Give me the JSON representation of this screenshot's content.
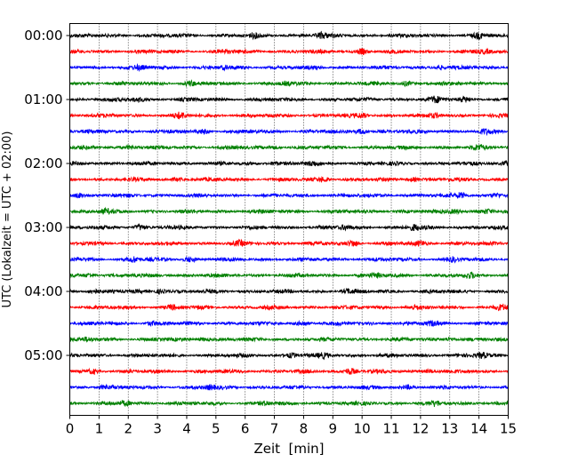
{
  "chart_data": {
    "type": "line",
    "title": "",
    "xlabel": "Zeit  [min]",
    "ylabel": "UTC (Lokalzeit = UTC + 02:00)",
    "xlim": [
      0,
      15
    ],
    "x_ticks": [
      0,
      1,
      2,
      3,
      4,
      5,
      6,
      7,
      8,
      9,
      10,
      11,
      12,
      13,
      14,
      15
    ],
    "x_tick_labels": [
      "0",
      "1",
      "2",
      "3",
      "4",
      "5",
      "6",
      "7",
      "8",
      "9",
      "10",
      "11",
      "12",
      "13",
      "14",
      "15"
    ],
    "vertical_gridlines": "dotted at each minute",
    "y_tick_labels": [
      "00:00",
      "01:00",
      "02:00",
      "03:00",
      "04:00",
      "05:00"
    ],
    "trace_interval_minutes": 15,
    "trace_count": 24,
    "trace_color_cycle": [
      "#000000",
      "#ff0000",
      "#0000ff",
      "#008000"
    ],
    "series": [
      {
        "start": "00:00",
        "color": "#000000",
        "bursts": [
          [
            8.6,
            2.6
          ],
          [
            14.0,
            2.2
          ],
          [
            6.3,
            1.6
          ]
        ]
      },
      {
        "start": "00:15",
        "color": "#ff0000",
        "bursts": [
          [
            10.0,
            2.4
          ],
          [
            14.2,
            1.8
          ],
          [
            5.3,
            1.5
          ]
        ]
      },
      {
        "start": "00:30",
        "color": "#0000ff",
        "bursts": [
          [
            2.4,
            1.6
          ],
          [
            12.6,
            1.8
          ],
          [
            5.3,
            1.4
          ]
        ]
      },
      {
        "start": "00:45",
        "color": "#008000",
        "bursts": [
          [
            4.1,
            2.0
          ],
          [
            11.5,
            1.7
          ],
          [
            7.4,
            1.3
          ]
        ]
      },
      {
        "start": "01:00",
        "color": "#000000",
        "bursts": [
          [
            12.5,
            2.4
          ],
          [
            13.5,
            2.2
          ],
          [
            2.3,
            1.9
          ]
        ]
      },
      {
        "start": "01:15",
        "color": "#ff0000",
        "bursts": [
          [
            3.8,
            2.6
          ],
          [
            10.0,
            1.8
          ],
          [
            12.5,
            1.4
          ]
        ]
      },
      {
        "start": "01:30",
        "color": "#0000ff",
        "bursts": [
          [
            10.0,
            2.6
          ],
          [
            4.6,
            1.9
          ],
          [
            14.2,
            1.7
          ]
        ]
      },
      {
        "start": "01:45",
        "color": "#008000",
        "bursts": [
          [
            2.1,
            1.8
          ],
          [
            14.0,
            1.8
          ],
          [
            7.0,
            1.5
          ]
        ]
      },
      {
        "start": "02:00",
        "color": "#000000",
        "bursts": [
          [
            7.0,
            2.1
          ],
          [
            8.3,
            2.0
          ],
          [
            15.0,
            2.4
          ]
        ]
      },
      {
        "start": "02:15",
        "color": "#ff0000",
        "bursts": [
          [
            8.7,
            2.2
          ],
          [
            11.7,
            1.7
          ],
          [
            3.7,
            1.4
          ]
        ]
      },
      {
        "start": "02:30",
        "color": "#0000ff",
        "bursts": [
          [
            0.3,
            2.4
          ],
          [
            13.4,
            2.6
          ],
          [
            14.6,
            2.0
          ]
        ]
      },
      {
        "start": "02:45",
        "color": "#008000",
        "bursts": [
          [
            13.2,
            2.2
          ],
          [
            14.3,
            2.2
          ],
          [
            1.2,
            1.9
          ]
        ]
      },
      {
        "start": "03:00",
        "color": "#000000",
        "bursts": [
          [
            2.4,
            2.4
          ],
          [
            11.8,
            2.6
          ],
          [
            9.4,
            1.9
          ]
        ]
      },
      {
        "start": "03:15",
        "color": "#ff0000",
        "bursts": [
          [
            9.7,
            2.8
          ],
          [
            5.8,
            1.6
          ],
          [
            12.0,
            1.8
          ]
        ]
      },
      {
        "start": "03:30",
        "color": "#0000ff",
        "bursts": [
          [
            2.2,
            2.6
          ],
          [
            4.1,
            2.2
          ],
          [
            13.1,
            1.9
          ]
        ]
      },
      {
        "start": "03:45",
        "color": "#008000",
        "bursts": [
          [
            0.7,
            2.0
          ],
          [
            10.5,
            1.8
          ],
          [
            13.7,
            2.0
          ]
        ]
      },
      {
        "start": "04:00",
        "color": "#000000",
        "bursts": [
          [
            0.8,
            2.2
          ],
          [
            3.1,
            2.1
          ],
          [
            9.5,
            1.7
          ]
        ]
      },
      {
        "start": "04:15",
        "color": "#ff0000",
        "bursts": [
          [
            3.5,
            2.3
          ],
          [
            14.8,
            2.8
          ],
          [
            11.8,
            1.6
          ]
        ]
      },
      {
        "start": "04:30",
        "color": "#0000ff",
        "bursts": [
          [
            8.0,
            2.0
          ],
          [
            12.4,
            2.1
          ],
          [
            2.8,
            1.6
          ]
        ]
      },
      {
        "start": "04:45",
        "color": "#008000",
        "bursts": [
          [
            4.6,
            1.7
          ],
          [
            13.0,
            1.9
          ],
          [
            0.6,
            1.5
          ]
        ]
      },
      {
        "start": "05:00",
        "color": "#000000",
        "bursts": [
          [
            7.6,
            2.1
          ],
          [
            14.1,
            2.5
          ],
          [
            8.7,
            1.8
          ]
        ]
      },
      {
        "start": "05:15",
        "color": "#ff0000",
        "bursts": [
          [
            9.6,
            3.0
          ],
          [
            0.8,
            1.8
          ],
          [
            12.3,
            1.7
          ]
        ]
      },
      {
        "start": "05:30",
        "color": "#0000ff",
        "bursts": [
          [
            1.2,
            2.0
          ],
          [
            4.8,
            1.9
          ],
          [
            11.6,
            1.8
          ]
        ]
      },
      {
        "start": "05:45",
        "color": "#008000",
        "bursts": [
          [
            1.9,
            2.1
          ],
          [
            6.7,
            1.8
          ],
          [
            12.5,
            1.7
          ]
        ]
      }
    ]
  }
}
